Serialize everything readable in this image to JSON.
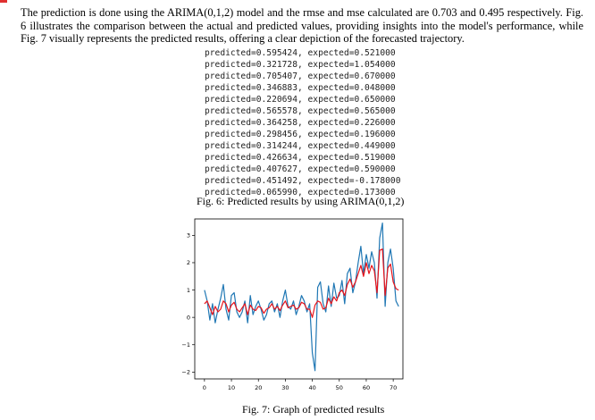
{
  "paragraph": [
    "The prediction is done using the ARIMA(0,1,2) model and the rmse and mse calculated are  0.703 and 0.495 respectively. Fig. 6",
    "illustrates the comparison between the actual and predicted values, providing insights into the model's performance, while Fig. 7",
    "visually represents the predicted results, offering a clear depiction of the forecasted trajectory."
  ],
  "code_lines": [
    "predicted=0.595424, expected=0.521000",
    "predicted=0.321728, expected=1.054000",
    "predicted=0.705407, expected=0.670000",
    "predicted=0.346883, expected=0.048000",
    "predicted=0.220694, expected=0.650000",
    "predicted=0.565578, expected=0.565000",
    "predicted=0.364258, expected=0.226000",
    "predicted=0.298456, expected=0.196000",
    "predicted=0.314244, expected=0.449000",
    "predicted=0.426634, expected=0.519000",
    "predicted=0.407627, expected=0.590000",
    "predicted=0.451492, expected=-0.178000",
    "predicted=0.065990, expected=0.173000"
  ],
  "caption_fig6": "Fig. 6: Predicted results by using ARIMA(0,1,2)",
  "caption_fig7": "Fig. 7: Graph of predicted results",
  "chart_data": {
    "type": "line",
    "title": "",
    "xlabel": "",
    "ylabel": "",
    "xlim": [
      -3.6,
      73.6
    ],
    "ylim": [
      -2.25,
      3.6
    ],
    "xticks": [
      0,
      10,
      20,
      30,
      40,
      50,
      60,
      70
    ],
    "yticks": [
      -2,
      -1,
      0,
      1,
      2,
      3
    ],
    "grid": false,
    "series": [
      {
        "name": "",
        "color": "#1f77b4",
        "values": [
          1.0,
          0.6,
          -0.1,
          0.5,
          -0.2,
          0.3,
          0.7,
          1.2,
          0.3,
          -0.1,
          0.8,
          0.9,
          0.2,
          0.0,
          0.2,
          0.6,
          -0.2,
          0.8,
          0.1,
          0.4,
          0.6,
          0.3,
          -0.1,
          0.1,
          0.5,
          0.6,
          0.2,
          0.5,
          0.0,
          0.6,
          1.0,
          0.4,
          0.3,
          0.6,
          0.1,
          0.4,
          0.8,
          0.6,
          0.2,
          0.5,
          -1.3,
          -1.95,
          1.1,
          1.3,
          0.5,
          0.2,
          1.15,
          0.4,
          1.25,
          0.7,
          0.8,
          1.35,
          0.5,
          1.6,
          1.8,
          0.9,
          1.3,
          2.0,
          2.6,
          1.6,
          2.3,
          1.8,
          2.4,
          2.0,
          0.7,
          2.9,
          3.45,
          0.4,
          2.0,
          2.5,
          1.8,
          0.6,
          0.4
        ]
      },
      {
        "name": "",
        "color": "#e8131a",
        "values": [
          0.5,
          0.6,
          0.35,
          0.1,
          0.4,
          0.2,
          0.3,
          0.6,
          0.5,
          0.2,
          0.45,
          0.55,
          0.3,
          0.2,
          0.35,
          0.5,
          0.1,
          0.45,
          0.3,
          0.25,
          0.4,
          0.35,
          0.15,
          0.3,
          0.35,
          0.5,
          0.3,
          0.4,
          0.25,
          0.45,
          0.6,
          0.35,
          0.4,
          0.45,
          0.3,
          0.35,
          0.55,
          0.5,
          0.3,
          0.3,
          0.0,
          0.45,
          0.6,
          0.55,
          0.3,
          0.35,
          0.7,
          0.5,
          0.75,
          0.6,
          0.9,
          1.0,
          0.8,
          1.2,
          1.4,
          1.1,
          1.3,
          1.6,
          1.9,
          1.5,
          2.0,
          1.6,
          1.9,
          1.7,
          0.9,
          2.45,
          2.5,
          0.8,
          1.8,
          1.95,
          1.3,
          1.05,
          1.0
        ]
      }
    ]
  }
}
